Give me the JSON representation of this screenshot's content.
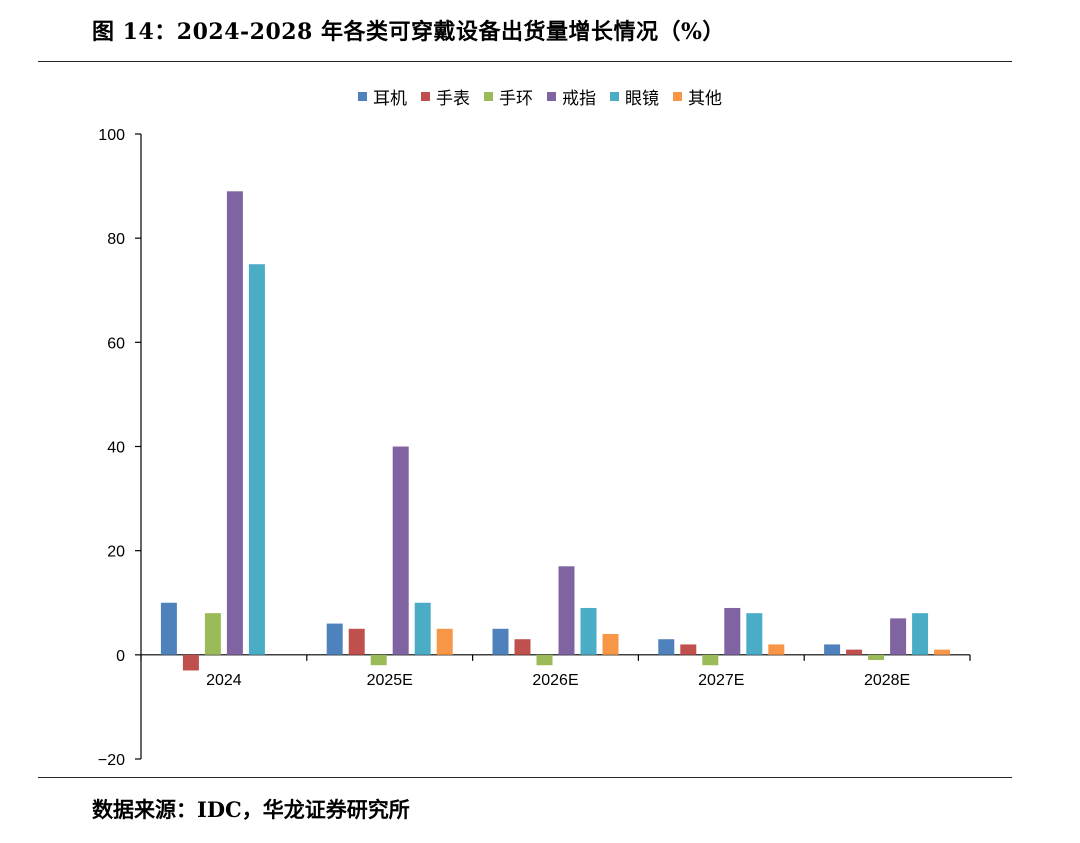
{
  "title": "图 14：2024-2028 年各类可穿戴设备出货量增长情况（%）",
  "source": "数据来源：IDC，华龙证券研究所",
  "chart_data": {
    "type": "bar",
    "categories": [
      "2024",
      "2025E",
      "2026E",
      "2027E",
      "2028E"
    ],
    "series": [
      {
        "name": "耳机",
        "color": "#4f81bd",
        "values": [
          10,
          6,
          5,
          3,
          2
        ]
      },
      {
        "name": "手表",
        "color": "#c0504d",
        "values": [
          -3,
          5,
          3,
          2,
          1
        ]
      },
      {
        "name": "手环",
        "color": "#9bbb59",
        "values": [
          8,
          -2,
          -2,
          -2,
          -1
        ]
      },
      {
        "name": "戒指",
        "color": "#8064a2",
        "values": [
          89,
          40,
          17,
          9,
          7
        ]
      },
      {
        "name": "眼镜",
        "color": "#4bacc6",
        "values": [
          75,
          10,
          9,
          8,
          8
        ]
      },
      {
        "name": "其他",
        "color": "#f79646",
        "values": [
          0,
          5,
          4,
          2,
          1
        ]
      }
    ],
    "ylim": [
      -20,
      100
    ],
    "yticks": [
      100,
      80,
      60,
      40,
      20,
      0,
      -20
    ],
    "ytick_labels": [
      "100",
      "80",
      "60",
      "40",
      "20",
      "0",
      "−20"
    ],
    "grid": false,
    "legend_position": "top-center"
  }
}
